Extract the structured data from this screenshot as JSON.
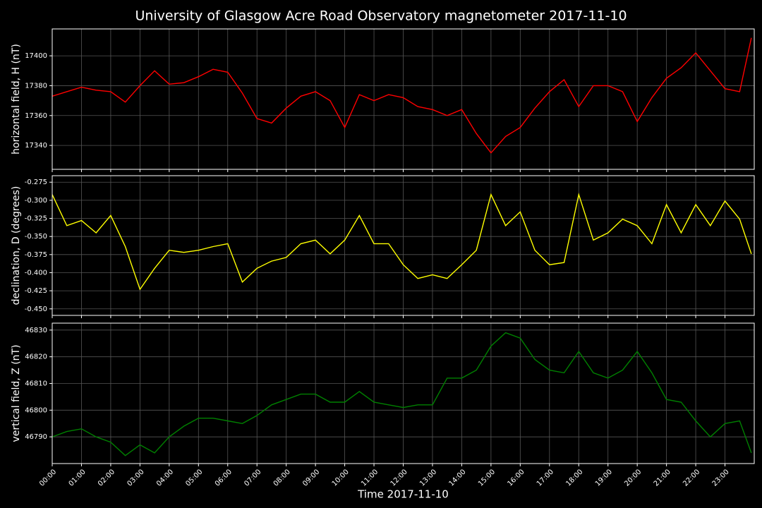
{
  "chart_data": [
    {
      "type": "line",
      "title": "University of Glasgow Acre Road Observatory magnetometer 2017-11-10",
      "ylabel": "horizontal field, H (nT)",
      "color": "#ff0000",
      "grid": true,
      "x": [
        0,
        0.5,
        1,
        1.5,
        2,
        2.5,
        3,
        3.5,
        4,
        4.5,
        5,
        5.5,
        6,
        6.5,
        7,
        7.5,
        8,
        8.5,
        9,
        9.5,
        10,
        10.5,
        11,
        11.5,
        12,
        12.5,
        13,
        13.5,
        14,
        14.5,
        15,
        15.5,
        16,
        16.5,
        17,
        17.5,
        18,
        18.5,
        19,
        19.5,
        20,
        20.5,
        21,
        21.5,
        22,
        22.5,
        23,
        23.5,
        23.9
      ],
      "values": [
        17373,
        17376,
        17379,
        17377,
        17376,
        17369,
        17380,
        17390,
        17381,
        17382,
        17386,
        17391,
        17389,
        17375,
        17358,
        17355,
        17365,
        17373,
        17376,
        17370,
        17352,
        17374,
        17370,
        17374,
        17372,
        17366,
        17364,
        17360,
        17364,
        17348,
        17335,
        17346,
        17352,
        17365,
        17376,
        17384,
        17366,
        17380,
        17380,
        17376,
        17356,
        17372,
        17385,
        17392,
        17402,
        17390,
        17378,
        17376,
        17412
      ],
      "xlim": [
        0,
        24
      ],
      "ylim": [
        17324,
        17418
      ],
      "yticks": [
        17340,
        17360,
        17380,
        17400
      ]
    },
    {
      "type": "line",
      "ylabel": "declination, D (degrees)",
      "color": "#ffff00",
      "grid": true,
      "x": [
        0,
        0.5,
        1,
        1.5,
        2,
        2.5,
        3,
        3.5,
        4,
        4.5,
        5,
        5.5,
        6,
        6.5,
        7,
        7.5,
        8,
        8.5,
        9,
        9.5,
        10,
        10.5,
        11,
        11.5,
        12,
        12.5,
        13,
        13.5,
        14,
        14.5,
        15,
        15.5,
        16,
        16.5,
        17,
        17.5,
        18,
        18.5,
        19,
        19.5,
        20,
        20.5,
        21,
        21.5,
        22,
        22.5,
        23,
        23.5,
        23.9
      ],
      "values": [
        -0.292,
        -0.335,
        -0.328,
        -0.345,
        -0.321,
        -0.364,
        -0.423,
        -0.394,
        -0.369,
        -0.372,
        -0.369,
        -0.364,
        -0.36,
        -0.413,
        -0.394,
        -0.384,
        -0.379,
        -0.36,
        -0.355,
        -0.374,
        -0.355,
        -0.321,
        -0.36,
        -0.36,
        -0.389,
        -0.408,
        -0.403,
        -0.408,
        -0.389,
        -0.369,
        -0.292,
        -0.335,
        -0.316,
        -0.369,
        -0.389,
        -0.386,
        -0.292,
        -0.355,
        -0.345,
        -0.326,
        -0.335,
        -0.36,
        -0.306,
        -0.345,
        -0.306,
        -0.335,
        -0.301,
        -0.326,
        -0.374
      ],
      "xlim": [
        0,
        24
      ],
      "ylim": [
        -0.459,
        -0.266
      ],
      "yticks": [
        -0.275,
        {
          "value": -0.3,
          "label": "-0.300"
        },
        -0.325,
        {
          "value": -0.35,
          "label": "-0.350"
        },
        -0.375,
        {
          "value": -0.4,
          "label": "-0.400"
        },
        -0.425,
        {
          "value": -0.45,
          "label": "-0.450"
        }
      ]
    },
    {
      "type": "line",
      "ylabel": "vertical field, Z (nT)",
      "xlabel": "Time 2017-11-10",
      "color": "#008000",
      "grid": true,
      "x": [
        0,
        0.5,
        1,
        1.5,
        2,
        2.5,
        3,
        3.5,
        4,
        4.5,
        5,
        5.5,
        6,
        6.5,
        7,
        7.5,
        8,
        8.5,
        9,
        9.5,
        10,
        10.5,
        11,
        11.5,
        12,
        12.5,
        13,
        13.5,
        14,
        14.5,
        15,
        15.5,
        16,
        16.5,
        17,
        17.5,
        18,
        18.5,
        19,
        19.5,
        20,
        20.5,
        21,
        21.5,
        22,
        22.5,
        23,
        23.5,
        23.9
      ],
      "values": [
        46790,
        46792,
        46793,
        46790,
        46788,
        46783,
        46787,
        46784,
        46790,
        46794,
        46797,
        46797,
        46796,
        46795,
        46798,
        46802,
        46804,
        46806,
        46806,
        46803,
        46803,
        46807,
        46803,
        46802,
        46801,
        46802,
        46802,
        46812,
        46812,
        46815,
        46824,
        46829,
        46827,
        46819,
        46815,
        46814,
        46822,
        46814,
        46812,
        46815,
        46822,
        46814,
        46804,
        46803,
        46796,
        46790,
        46795,
        46796,
        46784
      ],
      "xlim": [
        0,
        24
      ],
      "ylim": [
        46780,
        46832.6
      ],
      "yticks": [
        46790,
        46800,
        46810,
        46820,
        46830
      ],
      "xticks": [
        {
          "value": 0,
          "label": "00:00"
        },
        {
          "value": 1,
          "label": "01:00"
        },
        {
          "value": 2,
          "label": "02:00"
        },
        {
          "value": 3,
          "label": "03:00"
        },
        {
          "value": 4,
          "label": "04:00"
        },
        {
          "value": 5,
          "label": "05:00"
        },
        {
          "value": 6,
          "label": "06:00"
        },
        {
          "value": 7,
          "label": "07:00"
        },
        {
          "value": 8,
          "label": "08:00"
        },
        {
          "value": 9,
          "label": "09:00"
        },
        {
          "value": 10,
          "label": "10:00"
        },
        {
          "value": 11,
          "label": "11:00"
        },
        {
          "value": 12,
          "label": "12:00"
        },
        {
          "value": 13,
          "label": "13:00"
        },
        {
          "value": 14,
          "label": "14:00"
        },
        {
          "value": 15,
          "label": "15:00"
        },
        {
          "value": 16,
          "label": "16:00"
        },
        {
          "value": 17,
          "label": "17:00"
        },
        {
          "value": 18,
          "label": "18:00"
        },
        {
          "value": 19,
          "label": "19:00"
        },
        {
          "value": 20,
          "label": "20:00"
        },
        {
          "value": 21,
          "label": "21:00"
        },
        {
          "value": 22,
          "label": "22:00"
        },
        {
          "value": 23,
          "label": "23:00"
        }
      ]
    }
  ]
}
